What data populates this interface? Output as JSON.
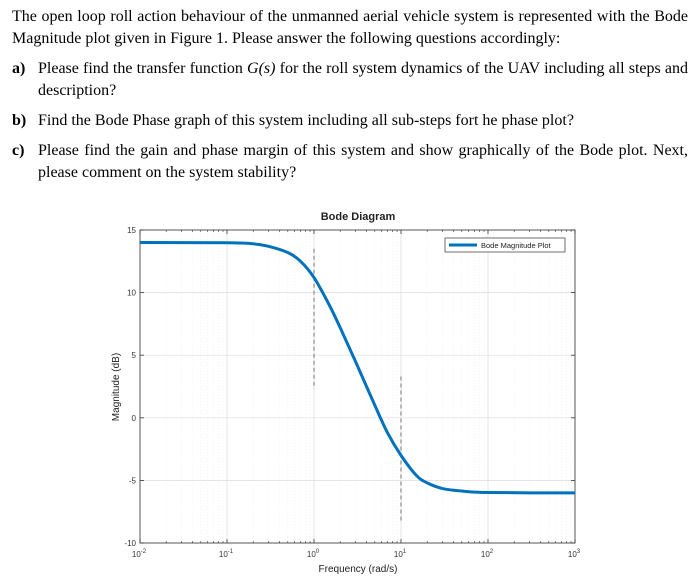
{
  "intro_text": "The open loop roll action behaviour of the unmanned aerial vehicle system is represented with the Bode Magnitude plot given in Figure 1. Please answer the following questions accordingly:",
  "questions": [
    {
      "label": "a)",
      "text_pre": "Please find the transfer function ",
      "math": "G(s)",
      "text_post": " for the roll system dynamics of the UAV including all steps and description?"
    },
    {
      "label": "b)",
      "text": "Find the Bode Phase graph of this system including all sub-steps fort he phase plot?"
    },
    {
      "label": "c)",
      "text": "Please find the gain and phase margin of this system and show graphically of the Bode plot. Next, please comment on the system stability?"
    }
  ],
  "chart_data": {
    "type": "line",
    "title": "Bode Diagram",
    "xlabel": "Frequency (rad/s)",
    "ylabel": "Magnitude (dB)",
    "x_scale": "log",
    "xlim": [
      0.01,
      1000
    ],
    "ylim": [
      -10,
      15
    ],
    "x_ticks": [
      {
        "value": 0.01,
        "base": "10",
        "exp": "-2"
      },
      {
        "value": 0.1,
        "base": "10",
        "exp": "-1"
      },
      {
        "value": 1,
        "base": "10",
        "exp": "0"
      },
      {
        "value": 10,
        "base": "10",
        "exp": "1"
      },
      {
        "value": 100,
        "base": "10",
        "exp": "2"
      },
      {
        "value": 1000,
        "base": "10",
        "exp": "3"
      }
    ],
    "y_ticks": [
      {
        "value": 15,
        "label": "15"
      },
      {
        "value": 10,
        "label": "10"
      },
      {
        "value": 5,
        "label": "5"
      },
      {
        "value": 0,
        "label": "0"
      },
      {
        "value": -5,
        "label": "-5"
      },
      {
        "value": -10,
        "label": "-10"
      }
    ],
    "grid": true,
    "legend_position": "top-right",
    "series": [
      {
        "name": "Bode Magnitude Plot",
        "color": "#0072BD",
        "x": [
          0.01,
          0.1,
          0.2,
          0.3,
          0.5,
          0.7,
          1,
          1.5,
          2,
          3,
          5,
          7,
          10,
          15,
          20,
          30,
          50,
          100,
          1000
        ],
        "y": [
          14,
          13.98,
          13.9,
          13.7,
          13.2,
          12.5,
          11.2,
          9.0,
          7.2,
          4.5,
          1.0,
          -1.2,
          -3.0,
          -4.6,
          -5.2,
          -5.65,
          -5.85,
          -5.97,
          -6.0
        ]
      }
    ],
    "markers": [
      {
        "x": 1,
        "y_from": 2.3,
        "y_to": 13.5,
        "style": "dashed"
      },
      {
        "x": 10,
        "y_from": -8.2,
        "y_to": 3.3,
        "style": "dashed"
      }
    ]
  }
}
